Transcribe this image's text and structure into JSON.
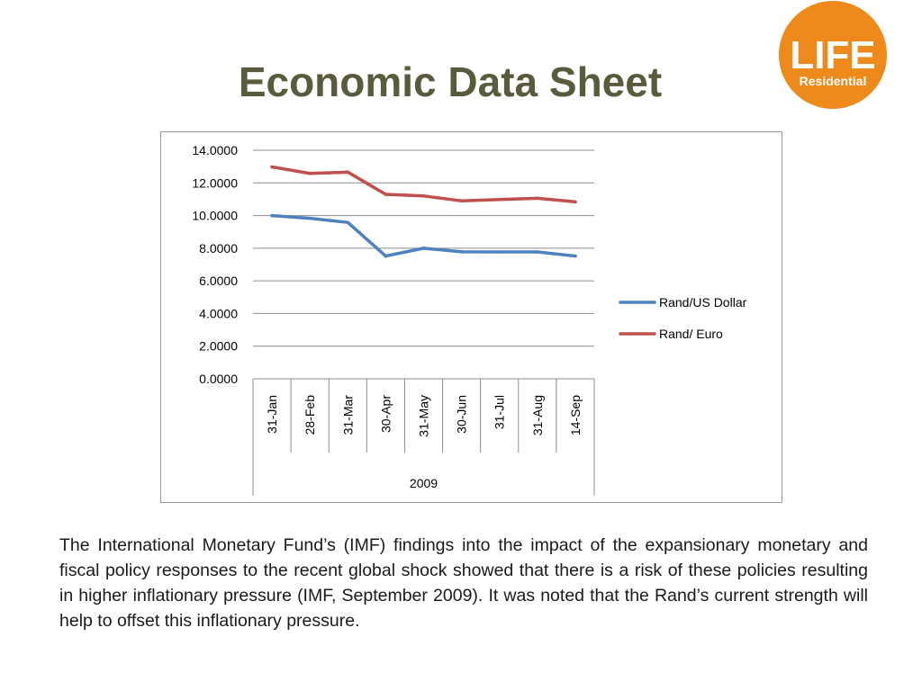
{
  "slide": {
    "title": "Economic Data Sheet",
    "body": "The International Monetary Fund’s (IMF) findings into the impact of the expansionary monetary and fiscal policy responses to the recent global shock showed that there is a risk of these policies resulting in higher inflationary pressure (IMF, September 2009).  It was noted that the Rand’s current strength will help to offset this inflationary pressure."
  },
  "logo": {
    "line1": "LIFE",
    "line2": "Residential",
    "color": "#ee8a1b"
  },
  "chart_data": {
    "type": "line",
    "categories": [
      "31-Jan",
      "28-Feb",
      "31-Mar",
      "30-Apr",
      "31-May",
      "30-Jun",
      "31-Jul",
      "31-Aug",
      "14-Sep"
    ],
    "category_group": "2009",
    "series": [
      {
        "name": "Rand/US Dollar",
        "color": "#4f81bd",
        "values": [
          10.0,
          9.83,
          9.58,
          7.52,
          8.0,
          7.78,
          7.77,
          7.77,
          7.52
        ]
      },
      {
        "name": "Rand/ Euro",
        "color": "#c0504d",
        "values": [
          12.98,
          12.58,
          12.66,
          11.3,
          11.2,
          10.9,
          10.98,
          11.06,
          10.84
        ]
      }
    ],
    "ylim": [
      0,
      14
    ],
    "yticks": [
      "0.0000",
      "2.0000",
      "4.0000",
      "6.0000",
      "8.0000",
      "10.0000",
      "12.0000",
      "14.0000"
    ],
    "grid": true,
    "legend": "right"
  }
}
